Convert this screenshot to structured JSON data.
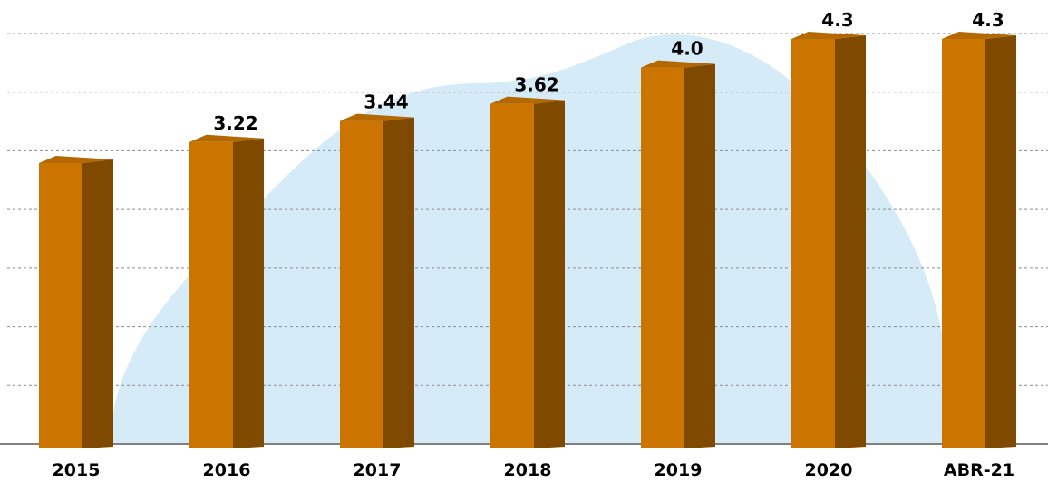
{
  "chart_data": {
    "type": "bar",
    "categories": [
      "2015",
      "2016",
      "2017",
      "2018",
      "2019",
      "2020",
      "ABR-21"
    ],
    "values": [
      3.0,
      3.22,
      3.44,
      3.62,
      4.0,
      4.3,
      4.3
    ],
    "data_labels": [
      "",
      "3.22",
      "3.44",
      "3.62",
      "4.0",
      "4.3",
      "4.3"
    ],
    "title": "",
    "xlabel": "",
    "ylabel": "",
    "ylim": [
      0,
      4.3
    ],
    "grid": true,
    "gridlines": 7,
    "style": "3d-column",
    "colors": {
      "bar_front": "#CC7400",
      "bar_side": "#7F4A00",
      "bar_top": "#B46800",
      "background_shape": "#D6EBF8",
      "gridline": "#8C8C8C",
      "axis": "#808080"
    }
  }
}
